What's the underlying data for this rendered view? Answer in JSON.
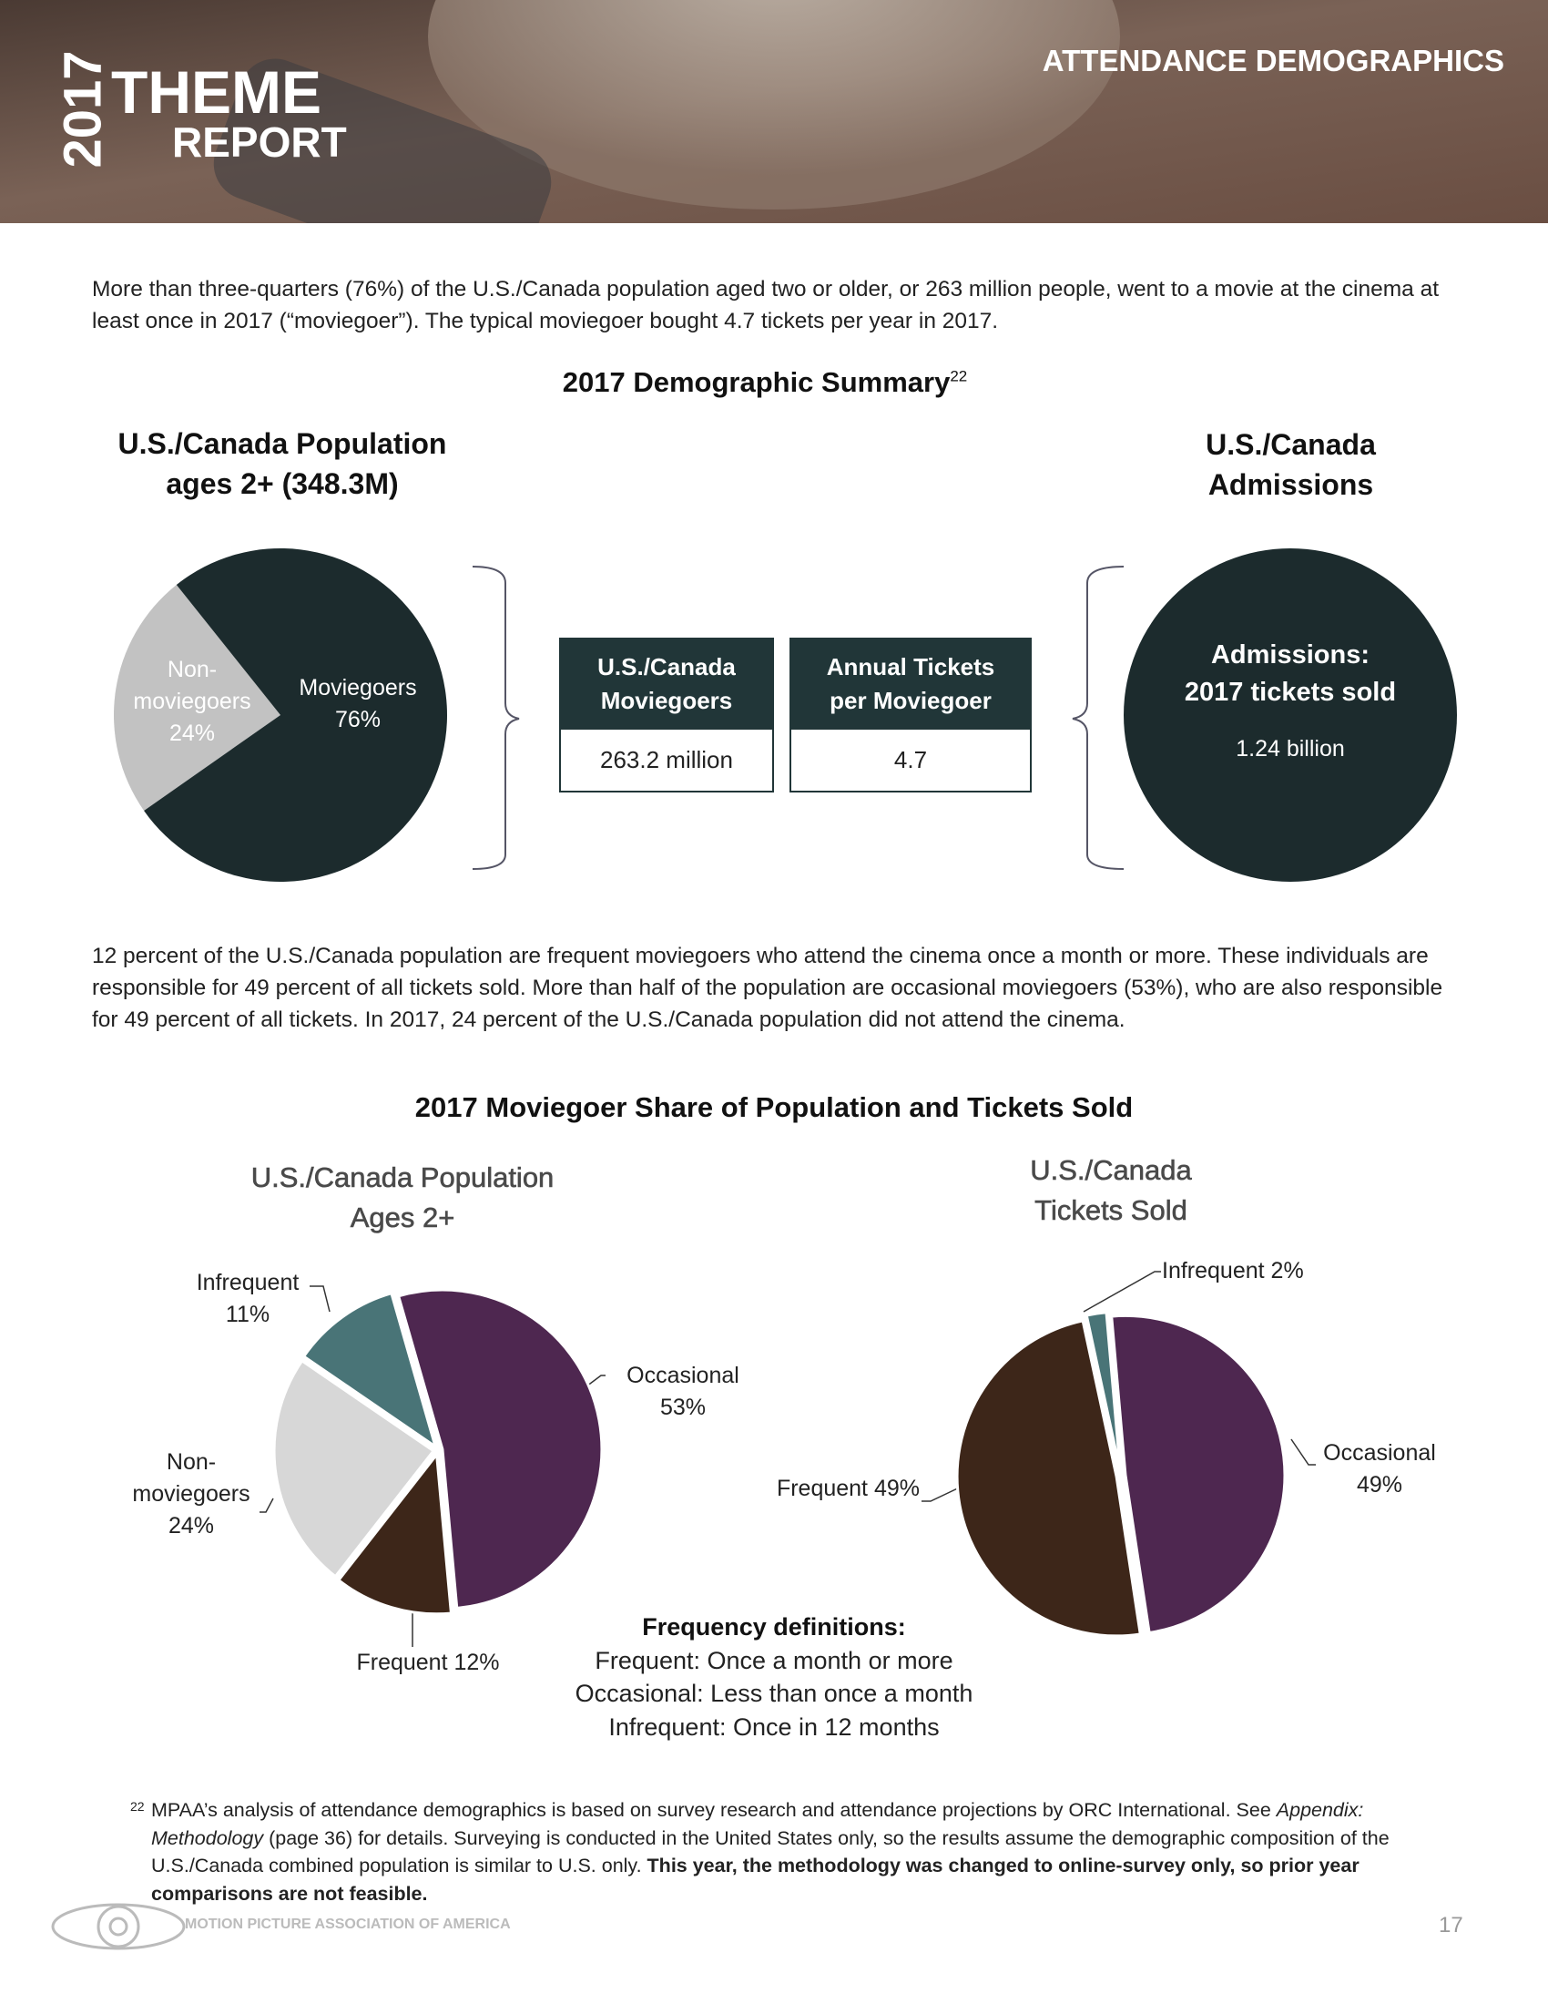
{
  "header": {
    "year": "2017",
    "theme": "THEME",
    "report": "REPORT",
    "section": "ATTENDANCE DEMOGRAPHICS"
  },
  "intro": "More than three-quarters (76%) of the U.S./Canada population aged two or older, or 263 million people, went to a movie at the cinema at least once in 2017 (“moviegoer”). The typical moviegoer bought 4.7 tickets per year in 2017.",
  "summary": {
    "title": "2017 Demographic Summary",
    "footnote_ref": "22",
    "population_chart": {
      "type": "pie",
      "title": "U.S./Canada Population ages 2+ (348.3M)",
      "categories": [
        "Non-moviegoers",
        "Moviegoers"
      ],
      "values": [
        24,
        76
      ],
      "value_labels": [
        "24%",
        "76%"
      ],
      "colors": [
        "#c2c2c2",
        "#1c2b2d"
      ]
    },
    "table": {
      "headers": [
        "U.S./Canada Moviegoers",
        "Annual Tickets per Moviegoer"
      ],
      "cells": [
        "263.2 million",
        "4.7"
      ]
    },
    "admissions": {
      "title": "U.S./Canada Admissions",
      "label_line1": "Admissions:",
      "label_line2": "2017 tickets sold",
      "value": "1.24 billion"
    }
  },
  "paragraph2": "12 percent of the U.S./Canada population are frequent moviegoers who attend the cinema once a month or more. These individuals are responsible for 49 percent of all tickets sold. More than half of the population are occasional moviegoers (53%), who are also responsible for 49 percent of all tickets. In 2017, 24 percent of the U.S./Canada population did not attend the cinema.",
  "share": {
    "title": "2017 Moviegoer Share of Population and Tickets Sold",
    "charts": [
      {
        "type": "pie",
        "title": "U.S./Canada Population Ages 2+",
        "categories": [
          "Occasional",
          "Frequent",
          "Non-moviegoers",
          "Infrequent"
        ],
        "values": [
          53,
          12,
          24,
          11
        ],
        "value_labels": [
          "53%",
          "12%",
          "24%",
          "11%"
        ],
        "colors": [
          "#4e2750",
          "#3d2619",
          "#d7d7d7",
          "#497477"
        ]
      },
      {
        "type": "pie",
        "title": "U.S./Canada Tickets Sold",
        "categories": [
          "Occasional",
          "Frequent",
          "Infrequent"
        ],
        "values": [
          49,
          49,
          2
        ],
        "value_labels": [
          "49%",
          "49%",
          "2%"
        ],
        "colors": [
          "#4e2750",
          "#3d2619",
          "#497477"
        ]
      }
    ],
    "definitions": {
      "title": "Frequency definitions:",
      "items": [
        "Frequent: Once a month or more",
        "Occasional: Less than once a month",
        "Infrequent: Once in 12 months"
      ]
    }
  },
  "footnote": {
    "ref": "22",
    "text1": "MPAA’s analysis of attendance demographics is based on survey research and attendance projections by ORC International. See ",
    "italic": "Appendix: Methodology",
    "text2": " (page 36) for details. Surveying is conducted in the United States only, so the results assume the demographic composition of the U.S./Canada combined population is similar to U.S. only. ",
    "bold": "This year, the methodology was changed to online-survey only, so prior year comparisons are not feasible."
  },
  "footer": {
    "org": "MOTION PICTURE ASSOCIATION OF AMERICA",
    "page": "17"
  }
}
